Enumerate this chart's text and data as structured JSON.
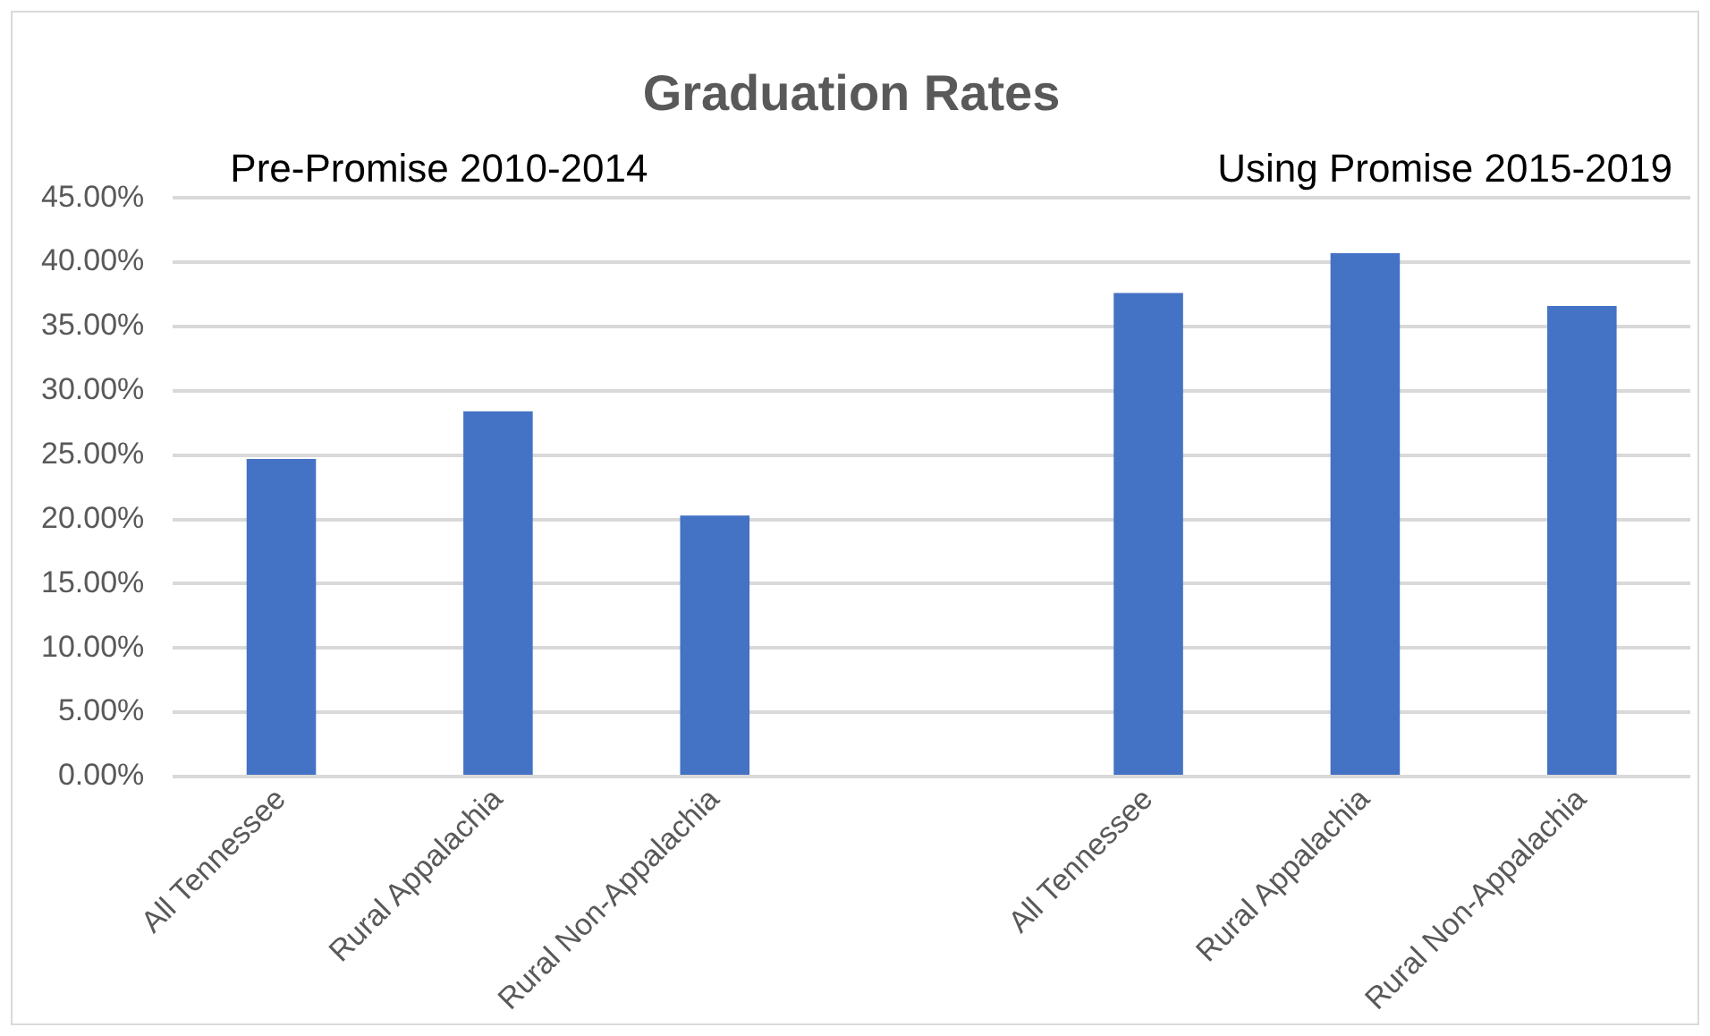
{
  "chart_data": {
    "type": "bar",
    "title": "Graduation Rates",
    "categories": [
      "All Tennessee",
      "Rural Appalachia",
      "Rural Non-Appalachia",
      null,
      "All Tennessee",
      "Rural Appalachia",
      "Rural Non-Appalachia"
    ],
    "values": [
      24.7,
      28.4,
      20.3,
      null,
      37.6,
      40.7,
      36.6
    ],
    "color": "#4472c4",
    "ylim": [
      0,
      45
    ],
    "yticks": [
      {
        "value": 0,
        "label": "0.00%"
      },
      {
        "value": 5,
        "label": "5.00%"
      },
      {
        "value": 10,
        "label": "10.00%"
      },
      {
        "value": 15,
        "label": "15.00%"
      },
      {
        "value": 20,
        "label": "20.00%"
      },
      {
        "value": 25,
        "label": "25.00%"
      },
      {
        "value": 30,
        "label": "30.00%"
      },
      {
        "value": 35,
        "label": "35.00%"
      },
      {
        "value": 40,
        "label": "40.00%"
      },
      {
        "value": 45,
        "label": "45.00%"
      }
    ],
    "grid": "y",
    "annotations": [
      "Pre-Promise 2010-2014",
      "Using Promise 2015-2019"
    ]
  }
}
